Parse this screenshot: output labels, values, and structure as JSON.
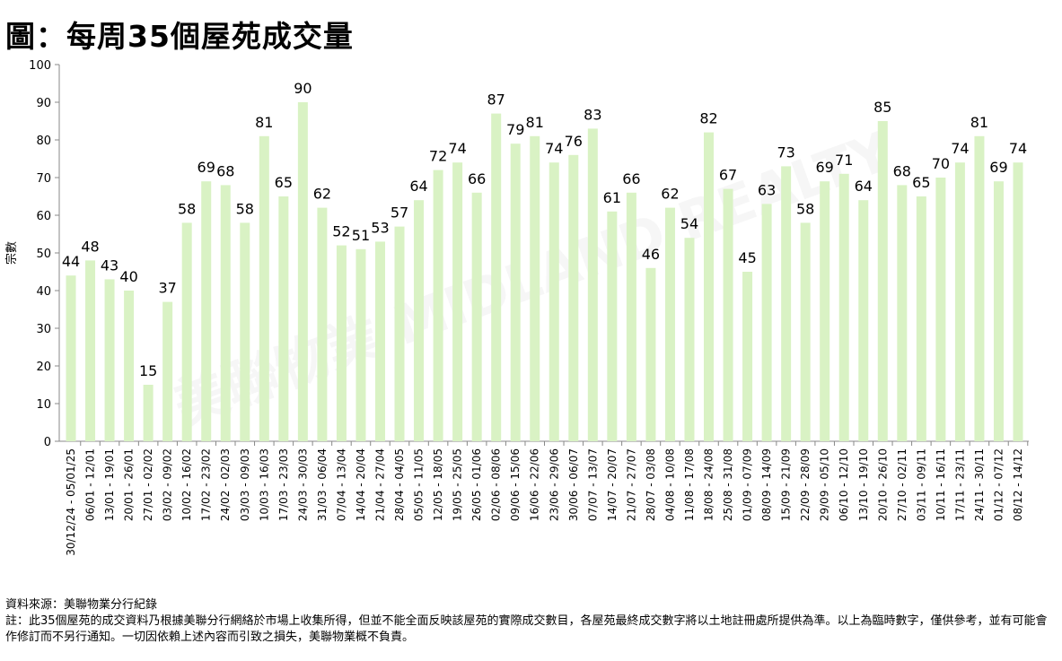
{
  "chart_data": {
    "type": "bar",
    "title": "圖：每周35個屋苑成交量",
    "xlabel": "",
    "ylabel": "宗數",
    "ylim": [
      0,
      100
    ],
    "yticks": [
      0,
      10,
      20,
      30,
      40,
      50,
      60,
      70,
      80,
      90,
      100
    ],
    "grid": false,
    "bar_color": "#d9f2c4",
    "categories": [
      "30/12/24 - 05/01/25",
      "06/01 - 12/01",
      "13/01 - 19/01",
      "20/01 - 26/01",
      "27/01 - 02/02",
      "03/02 - 09/02",
      "10/02 - 16/02",
      "17/02 - 23/02",
      "24/02 - 02/03",
      "03/03 - 09/03",
      "10/03 - 16/03",
      "17/03 - 23/03",
      "24/03 - 30/03",
      "31/03 - 06/04",
      "07/04 - 13/04",
      "14/04 - 20/04",
      "21/04 - 27/04",
      "28/04 - 04/05",
      "05/05 - 11/05",
      "12/05 - 18/05",
      "19/05 - 25/05",
      "26/05 - 01/06",
      "02/06 - 08/06",
      "09/06 - 15/06",
      "16/06 - 22/06",
      "23/06 - 29/06",
      "30/06 - 06/07",
      "07/07 - 13/07",
      "14/07 - 20/07",
      "21/07 - 27/07",
      "28/07 - 03/08",
      "04/08 - 10/08",
      "11/08 - 17/08",
      "18/08 - 24/08",
      "25/08 - 31/08",
      "01/09 - 07/09",
      "08/09 - 14/09",
      "15/09 - 21/09",
      "22/09 - 28/09",
      "29/09 - 05/10",
      "06/10 - 12/10",
      "13/10 - 19/10",
      "20/10 - 26/10",
      "27/10 - 02/11",
      "03/11 - 09/11",
      "10/11 - 16/11",
      "17/11 - 23/11",
      "24/11 - 30/11",
      "01/12 - 07/12",
      "08/12 - 14/12"
    ],
    "values": [
      44,
      48,
      43,
      40,
      15,
      37,
      58,
      69,
      68,
      58,
      81,
      65,
      90,
      62,
      52,
      51,
      53,
      57,
      64,
      72,
      74,
      66,
      87,
      79,
      81,
      74,
      76,
      83,
      61,
      66,
      46,
      62,
      54,
      82,
      67,
      45,
      63,
      73,
      58,
      69,
      71,
      64,
      85,
      68,
      65,
      70,
      74,
      81,
      69,
      74
    ]
  },
  "watermark": "美聯物業 MIDLAND REALTY",
  "footer": {
    "source": "資料來源：美聯物業分行紀錄",
    "note": "註：此35個屋苑的成交資料乃根據美聯分行網絡於市場上收集所得，但並不能全面反映該屋苑的實際成交數目，各屋苑最終成交數字將以土地註冊處所提供為準。以上為臨時數字，僅供參考，並有可能會作修訂而不另行通知。一切因依賴上述內容而引致之損失，美聯物業概不負責。"
  }
}
